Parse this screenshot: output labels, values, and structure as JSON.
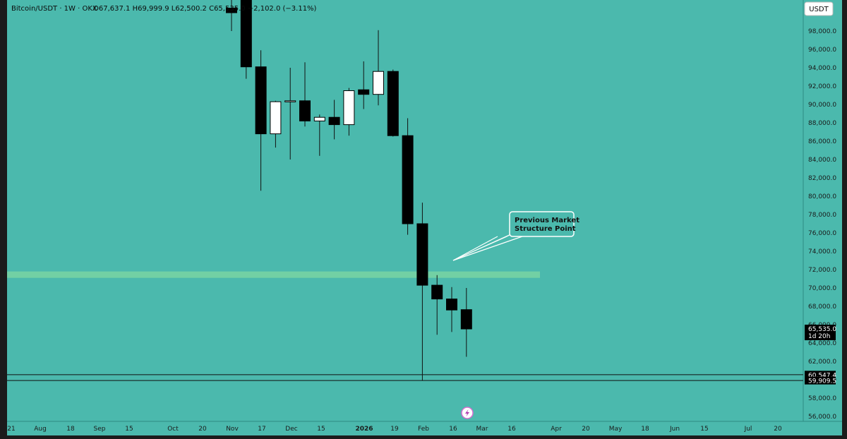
{
  "header": {
    "symbol": "Bitcoin/USDT · 1W · OKX",
    "ohlc": "O67,637.1  H69,999.9  L62,500.2  C65,535.0  −2,102.0 (−3.11%)"
  },
  "currency_button": "USDT",
  "colors": {
    "background": "#4bb9ad",
    "zone": "#7fd8a1",
    "candle_down": "#000000",
    "candle_up": "#ffffff",
    "wick": "#111111"
  },
  "annotation": {
    "text_line1": "Previous Market",
    "text_line2": "Structure Point"
  },
  "price_labels": [
    {
      "value": 65535.0,
      "text": "65,535.0",
      "sub": "1d 20h"
    },
    {
      "value": 60547.4,
      "text": "60,547.4",
      "sub": ""
    },
    {
      "value": 59909.5,
      "text": "59,909.5",
      "sub": ""
    }
  ],
  "icon": "lightning-icon",
  "chart_data": {
    "type": "candlestick",
    "title": "Bitcoin/USDT · 1W · OKX",
    "ylim": [
      55000,
      100000
    ],
    "yticks": [
      56000,
      58000,
      60000,
      62000,
      64000,
      66000,
      68000,
      70000,
      72000,
      74000,
      76000,
      78000,
      80000,
      82000,
      84000,
      86000,
      88000,
      90000,
      92000,
      94000,
      96000,
      98000
    ],
    "date_labels": [
      {
        "label": "21",
        "bold": false
      },
      {
        "label": "Aug",
        "bold": false
      },
      {
        "label": "18",
        "bold": false
      },
      {
        "label": "Sep",
        "bold": false
      },
      {
        "label": "15",
        "bold": false
      },
      {
        "label": "Oct",
        "bold": false
      },
      {
        "label": "20",
        "bold": false
      },
      {
        "label": "Nov",
        "bold": false
      },
      {
        "label": "17",
        "bold": false
      },
      {
        "label": "Dec",
        "bold": false
      },
      {
        "label": "15",
        "bold": false
      },
      {
        "label": "2026",
        "bold": true
      },
      {
        "label": "19",
        "bold": false
      },
      {
        "label": "Feb",
        "bold": false
      },
      {
        "label": "16",
        "bold": false
      },
      {
        "label": "Mar",
        "bold": false
      },
      {
        "label": "16",
        "bold": false
      },
      {
        "label": "Apr",
        "bold": false
      },
      {
        "label": "20",
        "bold": false
      },
      {
        "label": "May",
        "bold": false
      },
      {
        "label": "18",
        "bold": false
      },
      {
        "label": "Jun",
        "bold": false
      },
      {
        "label": "15",
        "bold": false
      },
      {
        "label": "Jul",
        "bold": false
      },
      {
        "label": "20",
        "bold": false
      }
    ],
    "candles": [
      {
        "o": 100500,
        "h": 101500,
        "l": 98000,
        "c": 100000
      },
      {
        "o": 104000,
        "h": 104500,
        "l": 92800,
        "c": 94100
      },
      {
        "o": 94100,
        "h": 95900,
        "l": 80600,
        "c": 86800
      },
      {
        "o": 86800,
        "h": 90400,
        "l": 85300,
        "c": 90300
      },
      {
        "o": 90300,
        "h": 94000,
        "l": 84000,
        "c": 90400
      },
      {
        "o": 90400,
        "h": 94600,
        "l": 87600,
        "c": 88200
      },
      {
        "o": 88200,
        "h": 88900,
        "l": 84400,
        "c": 88600
      },
      {
        "o": 88600,
        "h": 90500,
        "l": 86200,
        "c": 87800
      },
      {
        "o": 87800,
        "h": 91800,
        "l": 86600,
        "c": 91500
      },
      {
        "o": 91600,
        "h": 94700,
        "l": 89500,
        "c": 91100
      },
      {
        "o": 91100,
        "h": 98100,
        "l": 89900,
        "c": 93600
      },
      {
        "o": 93600,
        "h": 93800,
        "l": 86500,
        "c": 86600
      },
      {
        "o": 86600,
        "h": 88500,
        "l": 75800,
        "c": 77000
      },
      {
        "o": 77000,
        "h": 79300,
        "l": 59909.5,
        "c": 70300
      },
      {
        "o": 70300,
        "h": 71400,
        "l": 64900,
        "c": 68800
      },
      {
        "o": 68800,
        "h": 70100,
        "l": 65200,
        "c": 67600
      },
      {
        "o": 67637.1,
        "h": 69999.9,
        "l": 62500.2,
        "c": 65535.0
      }
    ],
    "zone": {
      "from": 71100,
      "to": 71800
    },
    "hlines": [
      60547.4,
      59909.5
    ]
  }
}
